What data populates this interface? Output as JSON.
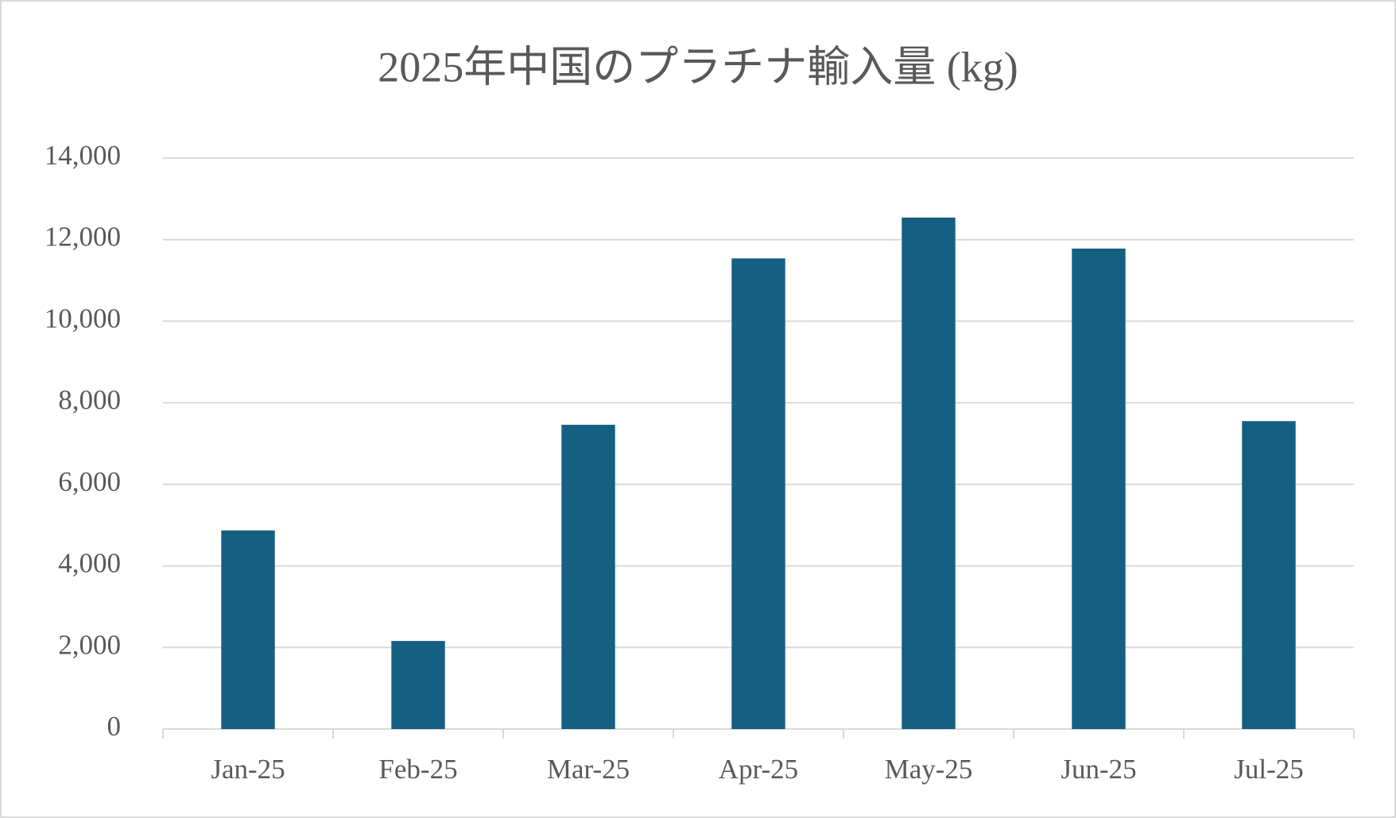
{
  "chart_data": {
    "type": "bar",
    "title": "2025年中国のプラチナ輸入量 (kg)",
    "categories": [
      "Jan-25",
      "Feb-25",
      "Mar-25",
      "Apr-25",
      "May-25",
      "Jun-25",
      "Jul-25"
    ],
    "values": [
      4870,
      2160,
      7460,
      11540,
      12540,
      11780,
      7550
    ],
    "color": "#156082",
    "ylim": [
      0,
      14000
    ],
    "yticks": [
      0,
      {
        "value": 2000,
        "label": "2,000"
      },
      {
        "value": 4000,
        "label": "4,000"
      },
      {
        "value": 6000,
        "label": "6,000"
      },
      {
        "value": 8000,
        "label": "8,000"
      },
      {
        "value": 10000,
        "label": "10,000"
      },
      {
        "value": 12000,
        "label": "12,000"
      },
      {
        "value": 14000,
        "label": "14,000"
      }
    ],
    "grid": true
  }
}
